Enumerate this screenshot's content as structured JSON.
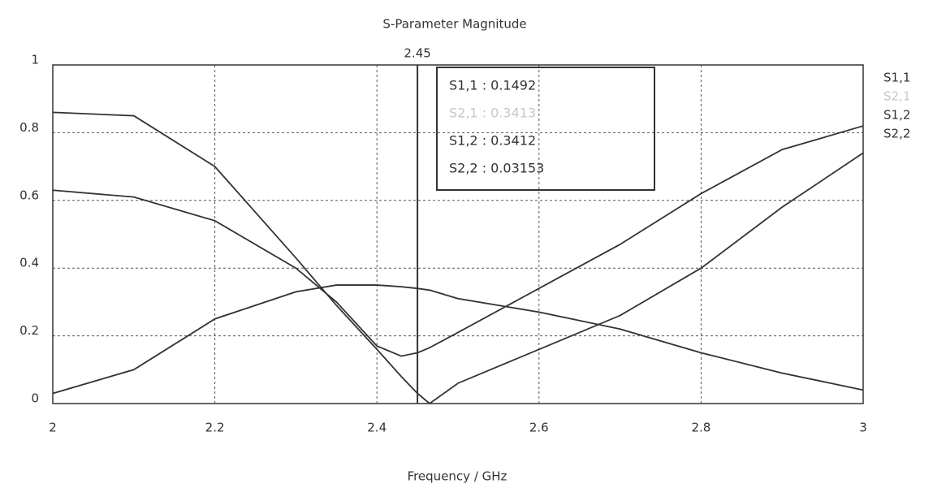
{
  "chart_data": {
    "type": "line",
    "title": "S-Parameter Magnitude",
    "x_label": "Frequency / GHz",
    "x": [
      2,
      2.1,
      2.2,
      2.3,
      2.35,
      2.4,
      2.43,
      2.45,
      2.465,
      2.5,
      2.6,
      2.7,
      2.8,
      2.9,
      3
    ],
    "series": [
      {
        "name": "S1,1",
        "color": "#333333",
        "values": [
          0.63,
          0.61,
          0.54,
          0.4,
          0.3,
          0.17,
          0.14,
          0.15,
          0.165,
          0.21,
          0.34,
          0.47,
          0.62,
          0.75,
          0.82
        ]
      },
      {
        "name": "S2,1",
        "color": "#c8c8c8",
        "values": [
          0.03,
          0.1,
          0.25,
          0.33,
          0.35,
          0.35,
          0.345,
          0.34,
          0.335,
          0.31,
          0.27,
          0.22,
          0.15,
          0.09,
          0.04
        ]
      },
      {
        "name": "S1,2",
        "color": "#333333",
        "values": [
          0.03,
          0.1,
          0.25,
          0.33,
          0.35,
          0.35,
          0.345,
          0.34,
          0.335,
          0.31,
          0.27,
          0.22,
          0.15,
          0.09,
          0.04
        ]
      },
      {
        "name": "S2,2",
        "color": "#333333",
        "values": [
          0.86,
          0.85,
          0.7,
          0.43,
          0.29,
          0.16,
          0.08,
          0.03,
          0.0,
          0.06,
          0.16,
          0.26,
          0.4,
          0.58,
          0.74
        ]
      }
    ],
    "marker": {
      "x": 2.45,
      "readout": [
        "S1,1 : 0.1492",
        "S2,1 : 0.3413",
        "S1,2 : 0.3412",
        "S2,2 : 0.03153"
      ]
    },
    "xlim": [
      2,
      3
    ],
    "xticks": [
      2,
      2.2,
      2.4,
      2.6,
      2.8,
      3
    ],
    "ylim": [
      0,
      1
    ],
    "yticks": [
      0,
      0.2,
      0.4,
      0.6,
      0.8,
      1
    ],
    "grid": true
  }
}
